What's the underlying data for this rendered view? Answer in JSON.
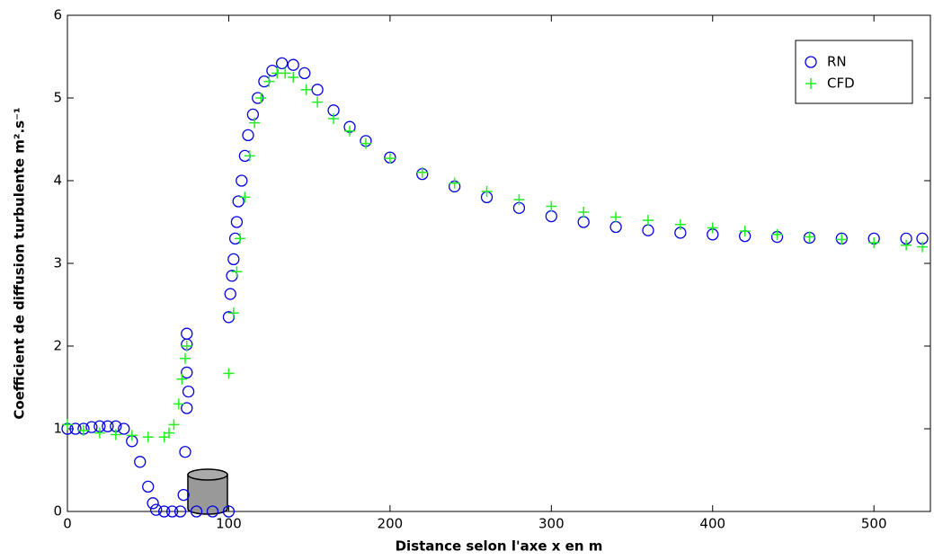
{
  "chart_data": {
    "type": "scatter",
    "xlabel": "Distance selon l'axe x en m",
    "ylabel": "Coefficient de diffusion turbulente m².s⁻¹",
    "xlim": [
      0,
      535
    ],
    "ylim": [
      0,
      6
    ],
    "xticks": [
      0,
      100,
      200,
      300,
      400,
      500
    ],
    "yticks": [
      0,
      1,
      2,
      3,
      4,
      5,
      6
    ],
    "legend": "upper right",
    "series": [
      {
        "name": "RN",
        "color": "#0000e0",
        "marker": "circle",
        "x": [
          0,
          5,
          10,
          15,
          20,
          25,
          30,
          35,
          40,
          45,
          50,
          53,
          55,
          60,
          65,
          70,
          72,
          73,
          74,
          74,
          74,
          74,
          75,
          80,
          90,
          100,
          100,
          101,
          102,
          103,
          104,
          105,
          106,
          108,
          110,
          112,
          115,
          118,
          122,
          127,
          133,
          140,
          147,
          155,
          165,
          175,
          185,
          200,
          220,
          240,
          260,
          280,
          300,
          320,
          340,
          360,
          380,
          400,
          420,
          440,
          460,
          480,
          500,
          520,
          530
        ],
        "values": [
          1.0,
          1.0,
          1.0,
          1.02,
          1.03,
          1.03,
          1.03,
          1.0,
          0.85,
          0.6,
          0.3,
          0.1,
          0.02,
          0,
          0,
          0,
          0.2,
          0.72,
          1.25,
          1.68,
          2.02,
          2.15,
          1.45,
          0,
          0,
          0,
          2.35,
          2.63,
          2.85,
          3.05,
          3.3,
          3.5,
          3.75,
          4.0,
          4.3,
          4.55,
          4.8,
          5.0,
          5.2,
          5.33,
          5.42,
          5.4,
          5.3,
          5.1,
          4.85,
          4.65,
          4.48,
          4.28,
          4.08,
          3.93,
          3.8,
          3.67,
          3.57,
          3.5,
          3.44,
          3.4,
          3.37,
          3.35,
          3.33,
          3.32,
          3.31,
          3.3,
          3.3,
          3.3,
          3.3
        ]
      },
      {
        "name": "CFD",
        "color": "#22ee22",
        "marker": "plus",
        "x": [
          0,
          10,
          20,
          30,
          40,
          50,
          60,
          63,
          66,
          69,
          71,
          73,
          74,
          100,
          103,
          105,
          107,
          110,
          113,
          116,
          120,
          125,
          130,
          135,
          140,
          148,
          155,
          165,
          175,
          185,
          200,
          220,
          240,
          260,
          280,
          300,
          320,
          340,
          360,
          380,
          400,
          420,
          440,
          460,
          480,
          500,
          520,
          530
        ],
        "values": [
          1.05,
          0.98,
          0.95,
          0.93,
          0.92,
          0.9,
          0.9,
          0.95,
          1.05,
          1.3,
          1.6,
          1.85,
          2.0,
          1.67,
          2.4,
          2.9,
          3.3,
          3.8,
          4.3,
          4.7,
          5.0,
          5.2,
          5.3,
          5.3,
          5.25,
          5.1,
          4.95,
          4.75,
          4.6,
          4.45,
          4.27,
          4.1,
          3.97,
          3.87,
          3.77,
          3.69,
          3.62,
          3.56,
          3.52,
          3.47,
          3.43,
          3.39,
          3.35,
          3.32,
          3.29,
          3.25,
          3.22,
          3.2
        ]
      }
    ]
  }
}
